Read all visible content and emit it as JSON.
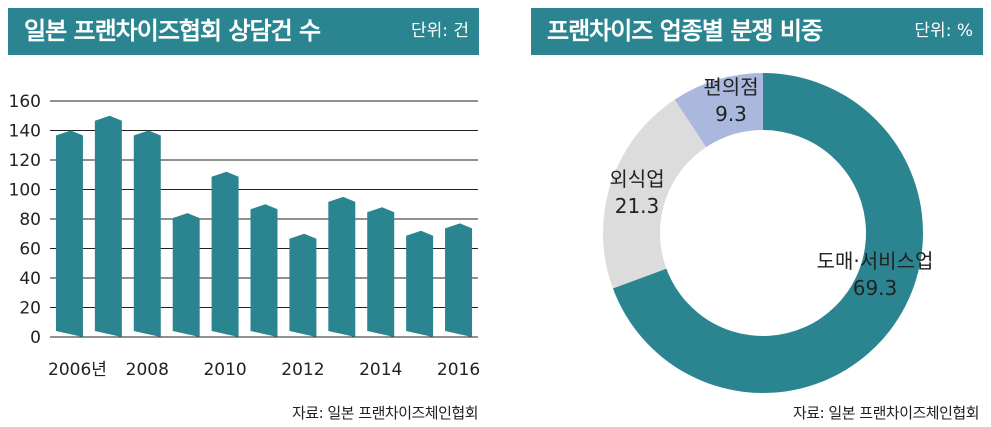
{
  "left": {
    "title": "일본 프랜차이즈협회 상담건 수",
    "unit": "단위: 건",
    "source": "자료: 일본 프랜차이즈체인협회"
  },
  "right": {
    "title": "프랜차이즈 업종별 분쟁 비중",
    "unit": "단위: %",
    "source": "자료: 일본 프랜차이즈체인협회"
  },
  "colors": {
    "teal": "#2b8590",
    "light_gray": "#dcdcdc",
    "light_blue": "#aab8de"
  },
  "chart_data": [
    {
      "type": "bar",
      "categories": [
        "2006",
        "2007",
        "2008",
        "2009",
        "2010",
        "2011",
        "2012",
        "2013",
        "2014",
        "2015",
        "2016"
      ],
      "tick_labels": [
        "2006년",
        "",
        "2008",
        "",
        "2010",
        "",
        "2012",
        "",
        "2014",
        "",
        "2016"
      ],
      "values": [
        140,
        150,
        140,
        84,
        112,
        90,
        70,
        95,
        88,
        72,
        77
      ],
      "title": "일본 프랜차이즈협회 상담건 수",
      "unit": "단위: 건",
      "ylim": [
        0,
        160
      ],
      "yticks": [
        0,
        20,
        40,
        60,
        80,
        100,
        120,
        140,
        160
      ],
      "grid": true
    },
    {
      "type": "pie",
      "donut": true,
      "title": "프랜차이즈 업종별 분쟁 비중",
      "unit": "단위: %",
      "slices": [
        {
          "label": "도매·서비스업",
          "value": 69.3,
          "value_label": "69.3",
          "color": "#2b8590"
        },
        {
          "label": "외식업",
          "value": 21.3,
          "value_label": "21.3",
          "color": "#dcdcdc"
        },
        {
          "label": "편의점",
          "value": 9.3,
          "value_label": "9.3",
          "color": "#aab8de"
        }
      ]
    }
  ]
}
